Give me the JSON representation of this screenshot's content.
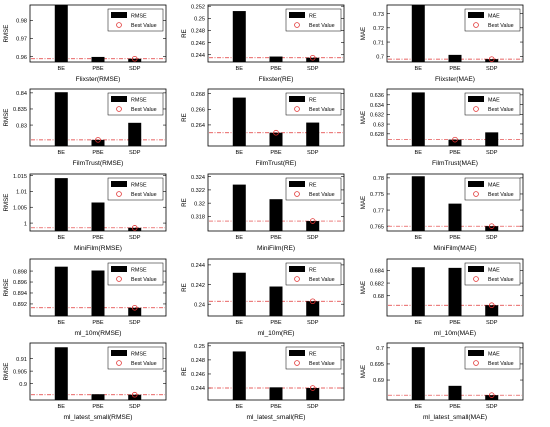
{
  "legend": {
    "bar_label": {
      "RMSE": "RMSE",
      "RE": "RE",
      "MAE": "MAE"
    },
    "best_label": "Best Value"
  },
  "colors": {
    "bar": "#000000",
    "best_line": "#e03030",
    "best_marker": "#e03030"
  },
  "chart_data": [
    {
      "type": "bar",
      "title": "Flixster(RMSE)",
      "ylabel": "RMSE",
      "categories": [
        "BE",
        "PBE",
        "SDP"
      ],
      "values": [
        0.9885,
        0.9598,
        0.9588
      ],
      "best": 0.9588,
      "ylim": [
        0.957,
        0.9885
      ],
      "yticks": [
        0.96,
        0.97,
        0.98
      ]
    },
    {
      "type": "bar",
      "title": "Flixster(RE)",
      "ylabel": "RE",
      "categories": [
        "BE",
        "PBE",
        "SDP"
      ],
      "values": [
        0.2512,
        0.2437,
        0.2435
      ],
      "best": 0.2435,
      "ylim": [
        0.2428,
        0.2522
      ],
      "yticks": [
        0.244,
        0.246,
        0.248,
        0.25,
        0.252
      ]
    },
    {
      "type": "bar",
      "title": "Flixster(MAE)",
      "ylabel": "MAE",
      "categories": [
        "BE",
        "PBE",
        "SDP"
      ],
      "values": [
        0.736,
        0.701,
        0.698
      ],
      "best": 0.698,
      "ylim": [
        0.696,
        0.736
      ],
      "yticks": [
        0.7,
        0.71,
        0.72,
        0.73
      ]
    },
    {
      "type": "bar",
      "title": "FilmTrust(RMSE)",
      "ylabel": "RMSE",
      "categories": [
        "BE",
        "PBE",
        "SDP"
      ],
      "values": [
        0.8402,
        0.8254,
        0.8307
      ],
      "best": 0.8254,
      "ylim": [
        0.8235,
        0.8412
      ],
      "yticks": [
        0.83,
        0.835,
        0.84
      ]
    },
    {
      "type": "bar",
      "title": "FilmTrust(RE)",
      "ylabel": "RE",
      "categories": [
        "BE",
        "PBE",
        "SDP"
      ],
      "values": [
        0.2675,
        0.263,
        0.2643
      ],
      "best": 0.263,
      "ylim": [
        0.2613,
        0.2686
      ],
      "yticks": [
        0.264,
        0.266,
        0.268
      ]
    },
    {
      "type": "bar",
      "title": "FilmTrust(MAE)",
      "ylabel": "MAE",
      "categories": [
        "BE",
        "PBE",
        "SDP"
      ],
      "values": [
        0.6365,
        0.6268,
        0.6283
      ],
      "best": 0.6268,
      "ylim": [
        0.6255,
        0.6372
      ],
      "yticks": [
        0.628,
        0.63,
        0.632,
        0.634,
        0.636
      ]
    },
    {
      "type": "bar",
      "title": "MiniFilm(RMSE)",
      "ylabel": "RMSE",
      "categories": [
        "BE",
        "PBE",
        "SDP"
      ],
      "values": [
        1.0142,
        1.0065,
        0.9985
      ],
      "best": 0.9985,
      "ylim": [
        0.9975,
        1.0155
      ],
      "yticks": [
        1,
        1.005,
        1.01,
        1.015
      ]
    },
    {
      "type": "bar",
      "title": "MiniFilm(RE)",
      "ylabel": "RE",
      "categories": [
        "BE",
        "PBE",
        "SDP"
      ],
      "values": [
        0.3228,
        0.3206,
        0.3173
      ],
      "best": 0.3173,
      "ylim": [
        0.3158,
        0.3244
      ],
      "yticks": [
        0.318,
        0.32,
        0.322,
        0.324
      ]
    },
    {
      "type": "bar",
      "title": "MiniFilm(MAE)",
      "ylabel": "MAE",
      "categories": [
        "BE",
        "PBE",
        "SDP"
      ],
      "values": [
        0.7805,
        0.772,
        0.765
      ],
      "best": 0.765,
      "ylim": [
        0.7635,
        0.7812
      ],
      "yticks": [
        0.765,
        0.77,
        0.775,
        0.78
      ]
    },
    {
      "type": "bar",
      "title": "ml_10m(RMSE)",
      "ylabel": "RMSE",
      "categories": [
        "BE",
        "PBE",
        "SDP"
      ],
      "values": [
        0.8988,
        0.8981,
        0.8913
      ],
      "best": 0.8913,
      "ylim": [
        0.8898,
        0.9002
      ],
      "yticks": [
        0.892,
        0.894,
        0.896,
        0.898
      ]
    },
    {
      "type": "bar",
      "title": "ml_10m(RE)",
      "ylabel": "RE",
      "categories": [
        "BE",
        "PBE",
        "SDP"
      ],
      "values": [
        0.2432,
        0.2418,
        0.2403
      ],
      "best": 0.2403,
      "ylim": [
        0.2388,
        0.2446
      ],
      "yticks": [
        0.24,
        0.242,
        0.244
      ]
    },
    {
      "type": "bar",
      "title": "ml_10m(MAE)",
      "ylabel": "MAE",
      "categories": [
        "BE",
        "PBE",
        "SDP"
      ],
      "values": [
        0.6845,
        0.6844,
        0.6785
      ],
      "best": 0.6785,
      "ylim": [
        0.6768,
        0.6858
      ],
      "yticks": [
        0.68,
        0.682,
        0.684
      ]
    },
    {
      "type": "bar",
      "title": "ml_latest_small(RMSE)",
      "ylabel": "RMSE",
      "categories": [
        "BE",
        "PBE",
        "SDP"
      ],
      "values": [
        0.9145,
        0.8958,
        0.8956
      ],
      "best": 0.8956,
      "ylim": [
        0.8935,
        0.9162
      ],
      "yticks": [
        0.9,
        0.905,
        0.91
      ]
    },
    {
      "type": "bar",
      "title": "ml_latest_small(RE)",
      "ylabel": "RE",
      "categories": [
        "BE",
        "PBE",
        "SDP"
      ],
      "values": [
        0.2492,
        0.2441,
        0.244
      ],
      "best": 0.244,
      "ylim": [
        0.2423,
        0.2504
      ],
      "yticks": [
        0.244,
        0.246,
        0.248,
        0.25
      ]
    },
    {
      "type": "bar",
      "title": "ml_latest_small(MAE)",
      "ylabel": "MAE",
      "categories": [
        "BE",
        "PBE",
        "SDP"
      ],
      "values": [
        0.7002,
        0.6882,
        0.6853
      ],
      "best": 0.6853,
      "ylim": [
        0.6838,
        0.7015
      ],
      "yticks": [
        0.69,
        0.695,
        0.7
      ]
    }
  ]
}
